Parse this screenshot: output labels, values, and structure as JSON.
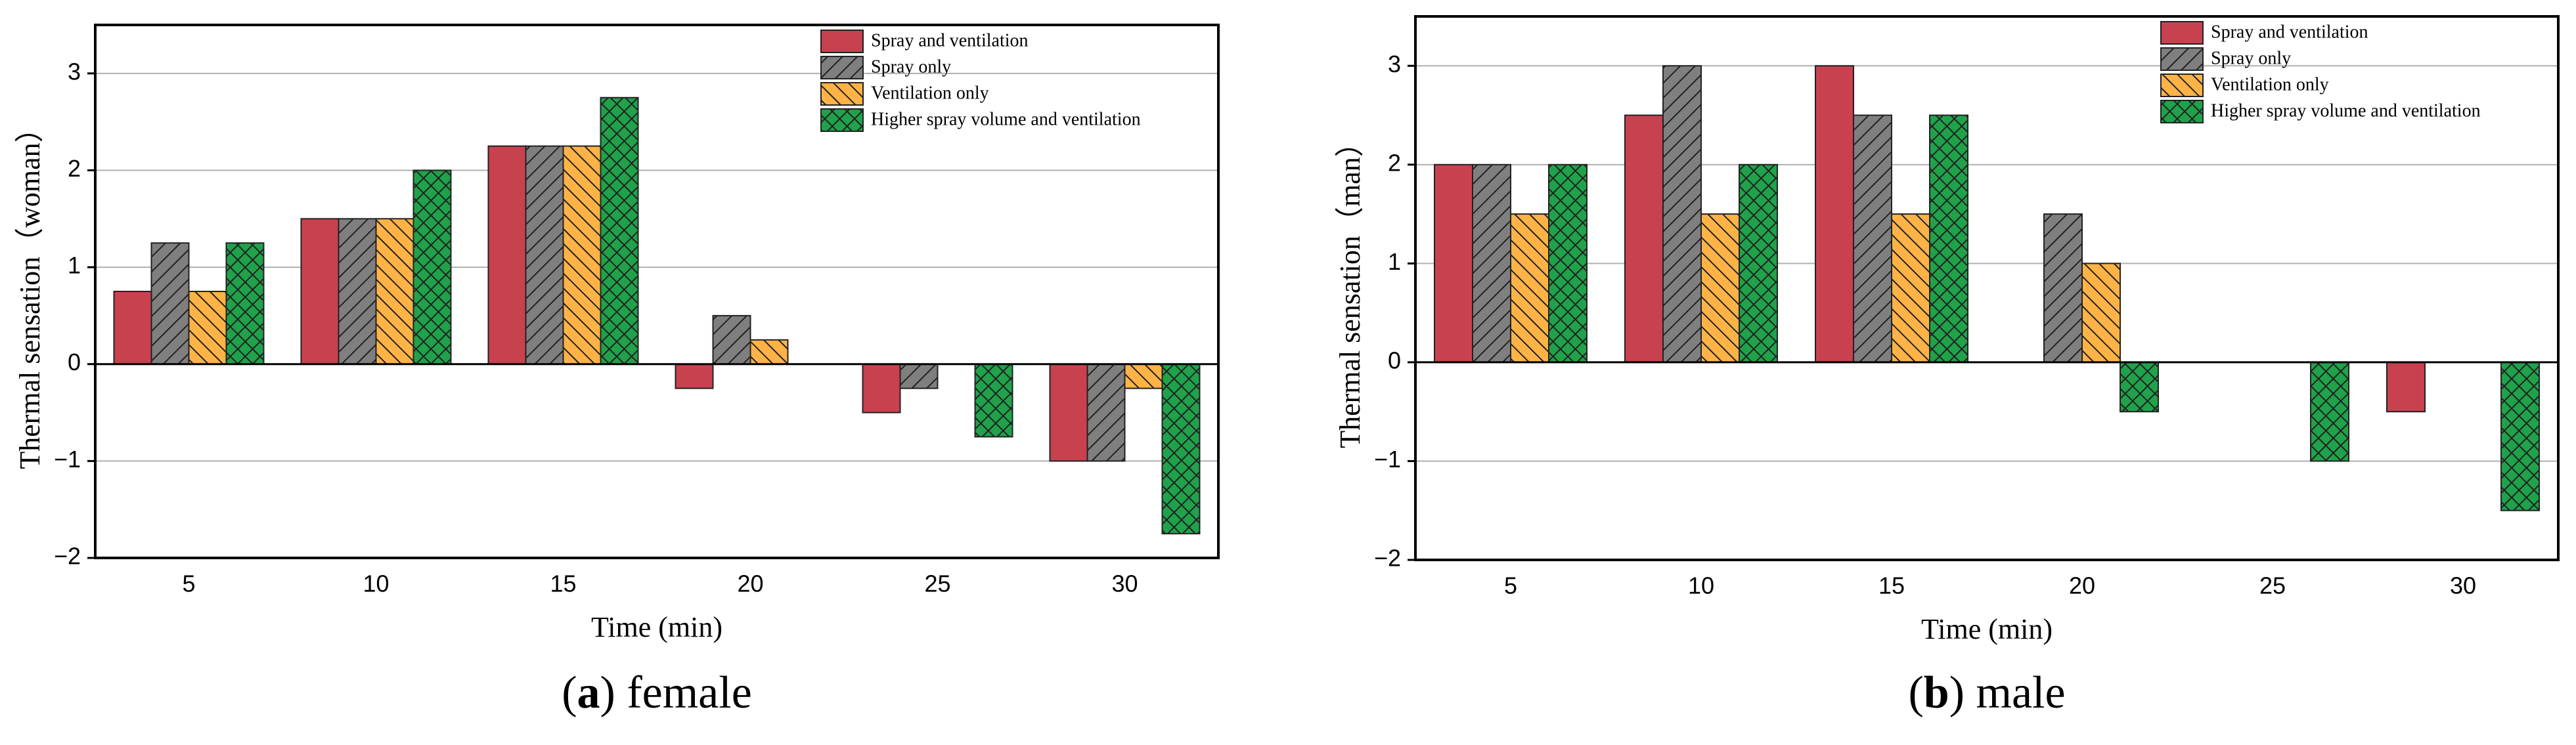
{
  "chart_data": [
    {
      "type": "bar",
      "x_label": "Time (min)",
      "y_label": "Thermal sensation（woman）",
      "caption_parts": [
        "(",
        "a",
        ") female"
      ],
      "categories": [
        "5",
        "10",
        "15",
        "20",
        "25",
        "30"
      ],
      "ylim": [
        -2,
        3.5
      ],
      "yticks": [
        {
          "value": -2,
          "label": "−2"
        },
        {
          "value": -1,
          "label": "−1"
        },
        0,
        1,
        2,
        3
      ],
      "grid": true,
      "legend": "upper right",
      "series": [
        {
          "name": "Spray and ventilation",
          "color": "#c8414f",
          "hatch": "none",
          "values": [
            0.75,
            1.5,
            2.25,
            -0.25,
            -0.5,
            -1
          ]
        },
        {
          "name": "Spray only",
          "color": "#7f7f7f",
          "hatch": "/",
          "values": [
            1.25,
            1.5,
            2.25,
            0.5,
            -0.25,
            -1
          ]
        },
        {
          "name": "Ventilation only",
          "color": "#ffb347",
          "hatch": "\\",
          "values": [
            0.75,
            1.5,
            2.25,
            0.25,
            0,
            -0.25
          ]
        },
        {
          "name": "Higher spray volume and ventilation",
          "color": "#1fa24a",
          "hatch": "x",
          "values": [
            1.25,
            2,
            2.75,
            0,
            -0.75,
            -1.75
          ]
        }
      ]
    },
    {
      "type": "bar",
      "x_label": "Time (min)",
      "y_label": "Thermal sensation（man）",
      "caption_parts": [
        "(",
        "b",
        ") male"
      ],
      "categories": [
        "5",
        "10",
        "15",
        "20",
        "25",
        "30"
      ],
      "ylim": [
        -2,
        3.5
      ],
      "yticks": [
        {
          "value": -2,
          "label": "−2"
        },
        {
          "value": -1,
          "label": "−1"
        },
        0,
        1,
        2,
        3
      ],
      "grid": true,
      "legend": "upper right",
      "series": [
        {
          "name": "Spray and ventilation",
          "color": "#c8414f",
          "hatch": "none",
          "values": [
            2,
            2.5,
            3,
            0,
            0,
            -0.5
          ]
        },
        {
          "name": "Spray only",
          "color": "#7f7f7f",
          "hatch": "/",
          "values": [
            2,
            3,
            2.5,
            1.5,
            0,
            0
          ]
        },
        {
          "name": "Ventilation only",
          "color": "#ffb347",
          "hatch": "\\",
          "values": [
            1.5,
            1.5,
            1.5,
            1,
            0,
            0
          ]
        },
        {
          "name": "Higher spray volume and ventilation",
          "color": "#1fa24a",
          "hatch": "x",
          "values": [
            2,
            2,
            2.5,
            -0.5,
            -1,
            -1.5
          ]
        }
      ]
    }
  ]
}
